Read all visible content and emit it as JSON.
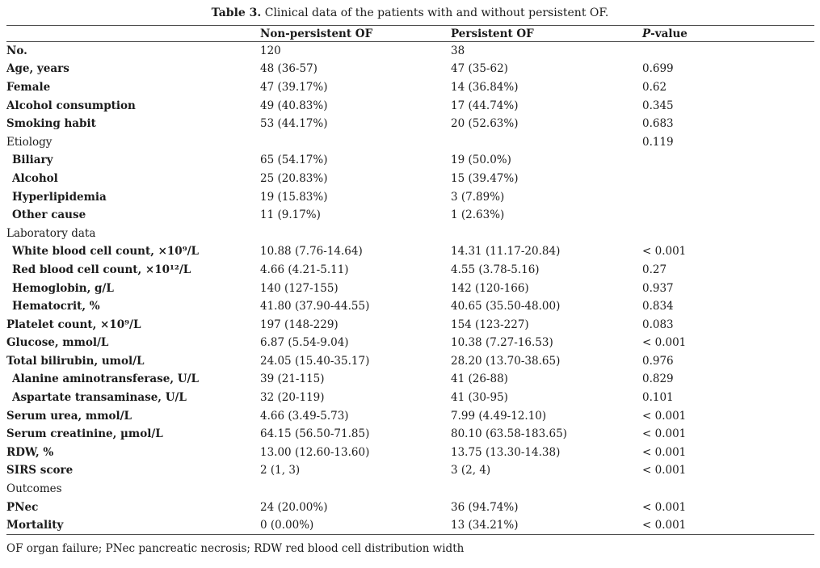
{
  "title": {
    "prefix": "Table 3.",
    "text": " Clinical data of the patients with and without persistent OF."
  },
  "table": {
    "header": {
      "col1": "",
      "col2": "Non-persistent OF",
      "col3": "Persistent OF",
      "p_italic": "P",
      "p_rest": "-value"
    },
    "rows": [
      {
        "label": "No.",
        "indent": false,
        "bold": true,
        "np": "120",
        "pof": "38",
        "p": ""
      },
      {
        "label": "Age, years",
        "indent": false,
        "bold": true,
        "np": "48 (36-57)",
        "pof": "47 (35-62)",
        "p": "0.699"
      },
      {
        "label": "Female",
        "indent": false,
        "bold": true,
        "np": "47 (39.17%)",
        "pof": "14 (36.84%)",
        "p": "0.62"
      },
      {
        "label": "Alcohol consumption",
        "indent": false,
        "bold": true,
        "np": "49 (40.83%)",
        "pof": "17 (44.74%)",
        "p": "0.345"
      },
      {
        "label": "Smoking habit",
        "indent": false,
        "bold": true,
        "np": "53 (44.17%)",
        "pof": "20 (52.63%)",
        "p": "0.683"
      },
      {
        "label": "Etiology",
        "indent": false,
        "bold": false,
        "np": "",
        "pof": "",
        "p": "0.119"
      },
      {
        "label": "Biliary",
        "indent": true,
        "bold": true,
        "np": "65 (54.17%)",
        "pof": "19 (50.0%)",
        "p": ""
      },
      {
        "label": "Alcohol",
        "indent": true,
        "bold": true,
        "np": "25 (20.83%)",
        "pof": "15 (39.47%)",
        "p": ""
      },
      {
        "label": "Hyperlipidemia",
        "indent": true,
        "bold": true,
        "np": "19 (15.83%)",
        "pof": "3 (7.89%)",
        "p": ""
      },
      {
        "label": "Other cause",
        "indent": true,
        "bold": true,
        "np": "11 (9.17%)",
        "pof": "1 (2.63%)",
        "p": ""
      },
      {
        "label": "Laboratory data",
        "indent": false,
        "bold": false,
        "np": "",
        "pof": "",
        "p": ""
      },
      {
        "label": "White blood cell count, ×10⁹/L",
        "indent": true,
        "bold": true,
        "np": "10.88 (7.76-14.64)",
        "pof": "14.31 (11.17-20.84)",
        "p": "< 0.001"
      },
      {
        "label": "Red blood cell count, ×10¹²/L",
        "indent": true,
        "bold": true,
        "np": "4.66 (4.21-5.11)",
        "pof": "4.55 (3.78-5.16)",
        "p": "0.27"
      },
      {
        "label": "Hemoglobin, g/L",
        "indent": true,
        "bold": true,
        "np": "140 (127-155)",
        "pof": "142 (120-166)",
        "p": "0.937"
      },
      {
        "label": "Hematocrit, %",
        "indent": true,
        "bold": true,
        "np": "41.80 (37.90-44.55)",
        "pof": "40.65 (35.50-48.00)",
        "p": "0.834"
      },
      {
        "label": "Platelet count, ×10⁹/L",
        "indent": false,
        "bold": true,
        "np": "197 (148-229)",
        "pof": "154 (123-227)",
        "p": "0.083"
      },
      {
        "label": "Glucose, mmol/L",
        "indent": false,
        "bold": true,
        "np": "6.87 (5.54-9.04)",
        "pof": "10.38 (7.27-16.53)",
        "p": "< 0.001"
      },
      {
        "label": "Total bilirubin, umol/L",
        "indent": false,
        "bold": true,
        "np": "24.05 (15.40-35.17)",
        "pof": "28.20 (13.70-38.65)",
        "p": "0.976"
      },
      {
        "label": "Alanine aminotransferase, U/L",
        "indent": true,
        "bold": true,
        "np": "39 (21-115)",
        "pof": "41 (26-88)",
        "p": "0.829"
      },
      {
        "label": "Aspartate transaminase, U/L",
        "indent": true,
        "bold": true,
        "np": "32 (20-119)",
        "pof": "41 (30-95)",
        "p": "0.101"
      },
      {
        "label": "Serum urea, mmol/L",
        "indent": false,
        "bold": true,
        "np": "4.66 (3.49-5.73)",
        "pof": "7.99 (4.49-12.10)",
        "p": "< 0.001"
      },
      {
        "label": "Serum creatinine, µmol/L",
        "indent": false,
        "bold": true,
        "np": "64.15 (56.50-71.85)",
        "pof": "80.10 (63.58-183.65)",
        "p": "< 0.001"
      },
      {
        "label": "RDW, %",
        "indent": false,
        "bold": true,
        "np": "13.00 (12.60-13.60)",
        "pof": "13.75 (13.30-14.38)",
        "p": "< 0.001"
      },
      {
        "label": "SIRS score",
        "indent": false,
        "bold": true,
        "np": "2 (1, 3)",
        "pof": "3 (2, 4)",
        "p": "< 0.001"
      },
      {
        "label": "Outcomes",
        "indent": false,
        "bold": false,
        "np": "",
        "pof": "",
        "p": ""
      },
      {
        "label": "PNec",
        "indent": false,
        "bold": true,
        "np": "24 (20.00%)",
        "pof": "36 (94.74%)",
        "p": "< 0.001"
      },
      {
        "label": "Mortality",
        "indent": false,
        "bold": true,
        "np": "0 (0.00%)",
        "pof": "13 (34.21%)",
        "p": "< 0.001"
      }
    ]
  },
  "footnote": "OF organ failure; PNec pancreatic necrosis; RDW red blood cell distribution width",
  "colors": {
    "background": "#ffffff",
    "text": "#1b1b1b",
    "rule": "#4d4d4d"
  }
}
